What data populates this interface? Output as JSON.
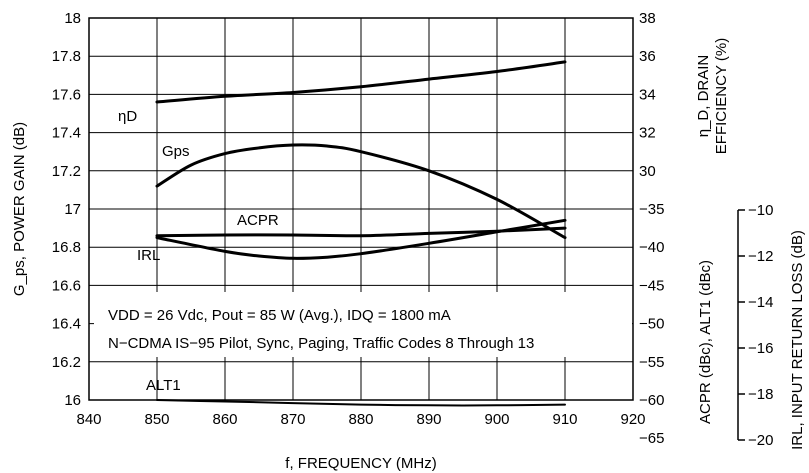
{
  "chart_data": {
    "type": "line",
    "x_axis": {
      "label": "f, FREQUENCY (MHz)",
      "range": [
        840,
        920
      ],
      "ticks": [
        "840",
        "850",
        "860",
        "870",
        "880",
        "890",
        "900",
        "910",
        "920"
      ]
    },
    "left_axis": {
      "label": "G_ps, POWER GAIN (dB)",
      "range": [
        16,
        18
      ],
      "ticks": [
        "16",
        "16.2",
        "16.4",
        "16.6",
        "16.8",
        "17",
        "17.2",
        "17.4",
        "17.6",
        "17.8",
        "18"
      ]
    },
    "right_axis_1": {
      "label_line1": "η_D, DRAIN",
      "label_line2": "EFFICIENCY (%)",
      "lower_label": "ACPR (dBc), ALT1 (dBc)",
      "ticks_top": [
        "38",
        "36",
        "34",
        "32",
        "30"
      ],
      "ticks_bottom": [
        "−35",
        "−40",
        "−45",
        "−50",
        "−55",
        "−60",
        "−65"
      ]
    },
    "right_axis_2": {
      "label": "IRL, INPUT RETURN LOSS (dB)",
      "ticks": [
        "−10",
        "−12",
        "−14",
        "−16",
        "−18",
        "−20"
      ]
    },
    "grid": true,
    "series": [
      {
        "name": "ηD",
        "axis": "efficiency_pct",
        "x": [
          850,
          860,
          870,
          880,
          890,
          900,
          910
        ],
        "y": [
          33.6,
          33.9,
          34.1,
          34.4,
          34.8,
          35.2,
          35.7
        ]
      },
      {
        "name": "Gps",
        "axis": "gain_db",
        "x": [
          850,
          855,
          860,
          865,
          870,
          875,
          880,
          890,
          900,
          910
        ],
        "y": [
          17.12,
          17.23,
          17.29,
          17.32,
          17.335,
          17.33,
          17.3,
          17.2,
          17.05,
          16.85
        ]
      },
      {
        "name": "ACPR",
        "axis": "dbc",
        "x": [
          850,
          860,
          870,
          880,
          890,
          900,
          910
        ],
        "y": [
          -38.5,
          -38.4,
          -38.4,
          -38.5,
          -38.2,
          -37.9,
          -37.5
        ]
      },
      {
        "name": "IRL",
        "axis": "irl_db",
        "x": [
          850,
          860,
          865,
          870,
          875,
          880,
          890,
          900,
          910
        ],
        "y": [
          -11.2,
          -11.8,
          -12.0,
          -12.1,
          -12.05,
          -11.9,
          -11.45,
          -10.95,
          -10.45
        ]
      },
      {
        "name": "ALT1",
        "axis": "dbc",
        "x": [
          850,
          860,
          870,
          880,
          890,
          900,
          910
        ],
        "y": [
          -60.0,
          -60.2,
          -60.4,
          -60.6,
          -60.7,
          -60.7,
          -60.6
        ]
      }
    ],
    "labels": {
      "etad": "ηD",
      "gps": "Gps",
      "acpr": "ACPR",
      "irl": "IRL",
      "alt1": "ALT1"
    },
    "annotation_line1": "VDD = 26 Vdc, Pout = 85 W (Avg.), IDQ = 1800 mA",
    "annotation_line2": "N−CDMA IS−95 Pilot, Sync, Paging, Traffic Codes 8 Through 13"
  }
}
